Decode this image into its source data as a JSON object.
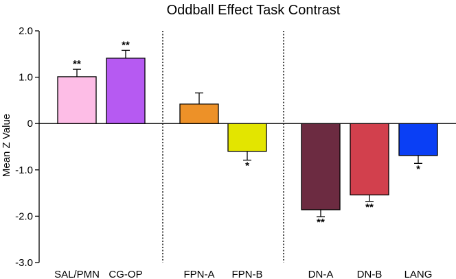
{
  "chart_data": {
    "type": "bar",
    "title": "Oddball Effect Task Contrast",
    "xlabel": "",
    "ylabel": "Mean Z Value",
    "ylim": [
      -3.0,
      2.0
    ],
    "yticks": [
      "2.0",
      "1.0",
      "0",
      "-1.0",
      "-2.0",
      "-3.0"
    ],
    "ytick_values": [
      2.0,
      1.0,
      0,
      -1.0,
      -2.0,
      -3.0
    ],
    "categories": [
      "SAL/PMN",
      "CG-OP",
      "FPN-A",
      "FPN-B",
      "DN-A",
      "DN-B",
      "LANG"
    ],
    "values": [
      1.01,
      1.41,
      0.42,
      -0.6,
      -1.86,
      -1.54,
      -0.69
    ],
    "errors": [
      0.16,
      0.17,
      0.24,
      0.19,
      0.15,
      0.14,
      0.17
    ],
    "significance": [
      "**",
      "**",
      "",
      "*",
      "**",
      "**",
      "*"
    ],
    "colors": [
      "#FDBDE6",
      "#B65AF2",
      "#ED9128",
      "#E3E500",
      "#6C2B41",
      "#D2404D",
      "#0A3FF5"
    ],
    "groups": [
      [
        0,
        1
      ],
      [
        2,
        3
      ],
      [
        4,
        5,
        6
      ]
    ],
    "grid": false,
    "legend": "none"
  }
}
